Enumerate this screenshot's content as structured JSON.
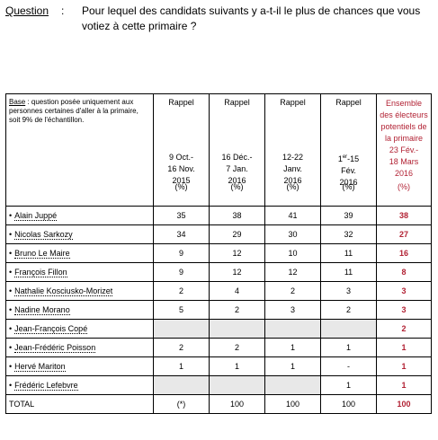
{
  "question": {
    "label": "Question",
    "colon": ":",
    "text": "Pour lequel des candidats suivants y a-t-il le plus de chances que vous votiez à cette primaire ?"
  },
  "base": {
    "label": "Base",
    "text": " : question posée uniquement aux personnes certaines d'aller à la primaire, soit 9% de l'échantillon."
  },
  "columns": [
    {
      "rappel": "Rappel",
      "period_lines": [
        "9 Oct.-",
        "16 Nov.",
        "2015"
      ],
      "unit": "(%)"
    },
    {
      "rappel": "Rappel",
      "period_lines": [
        "16 Déc.-",
        "7 Jan.",
        "2016"
      ],
      "unit": "(%)"
    },
    {
      "rappel": "Rappel",
      "period_lines": [
        "12-22",
        "Janv.",
        "2016"
      ],
      "unit": "(%)"
    },
    {
      "rappel": "Rappel",
      "period_lines": [
        "1er-15",
        "Fév.",
        "2016"
      ],
      "unit": "(%)"
    }
  ],
  "ensemble": {
    "lines": [
      "Ensemble",
      "des électeurs",
      "potentiels de",
      "la primaire",
      "23 Fév.-",
      "18 Mars",
      "2016"
    ],
    "unit": "(%)"
  },
  "rows": [
    {
      "name": "Alain Juppé",
      "values": [
        "35",
        "38",
        "41",
        "39"
      ],
      "current": "38"
    },
    {
      "name": "Nicolas Sarkozy",
      "values": [
        "34",
        "29",
        "30",
        "32"
      ],
      "current": "27"
    },
    {
      "name": "Bruno Le Maire",
      "values": [
        "9",
        "12",
        "10",
        "11"
      ],
      "current": "16"
    },
    {
      "name": "François Fillon",
      "values": [
        "9",
        "12",
        "12",
        "11"
      ],
      "current": "8"
    },
    {
      "name": "Nathalie Kosciusko-Morizet",
      "values": [
        "2",
        "4",
        "2",
        "3"
      ],
      "current": "3"
    },
    {
      "name": "Nadine Morano",
      "values": [
        "5",
        "2",
        "3",
        "2"
      ],
      "current": "3"
    },
    {
      "name": "Jean-François Copé",
      "values": [
        "",
        "",
        "",
        ""
      ],
      "current": "2",
      "gray": true
    },
    {
      "name": "Jean-Frédéric Poisson",
      "values": [
        "2",
        "2",
        "1",
        "1"
      ],
      "current": "1"
    },
    {
      "name": "Hervé Mariton",
      "values": [
        "1",
        "1",
        "1",
        "-"
      ],
      "current": "1"
    },
    {
      "name": "Frédéric Lefebvre",
      "values": [
        "",
        "",
        "",
        "1"
      ],
      "current": "1",
      "gray_partial": true
    }
  ],
  "total": {
    "label": "TOTAL",
    "values": [
      "(*)",
      "100",
      "100",
      "100"
    ],
    "current": "100"
  },
  "bullet": "•"
}
